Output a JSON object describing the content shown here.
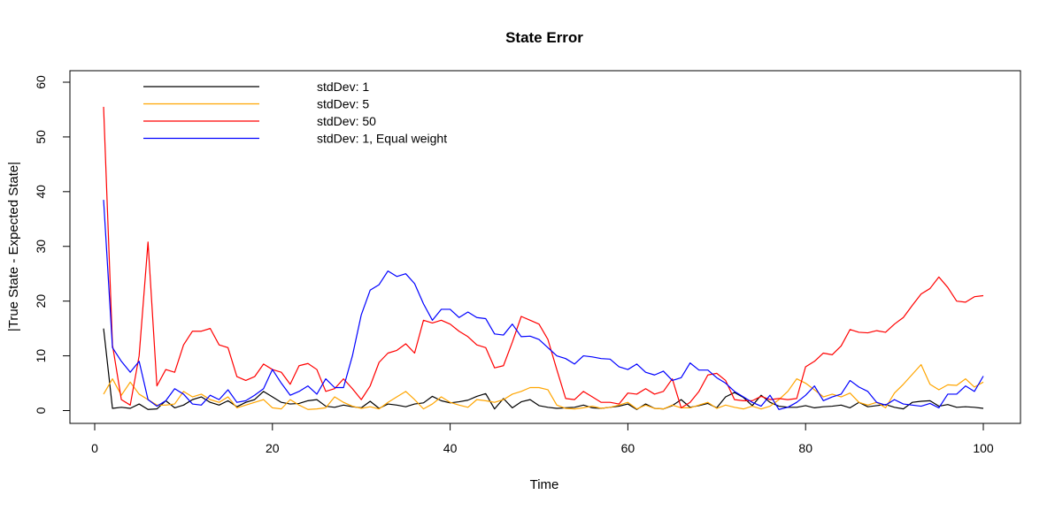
{
  "chart_data": {
    "type": "line",
    "title": "State Error",
    "xlabel": "Time",
    "ylabel": "|True State - Expected State|",
    "xlim": [
      1,
      100
    ],
    "ylim": [
      0,
      60
    ],
    "x_ticks": [
      0,
      20,
      40,
      60,
      80,
      100
    ],
    "y_ticks": [
      0,
      10,
      20,
      30,
      40,
      50,
      60
    ],
    "grid": false,
    "legend_position": "top-left",
    "series": [
      {
        "name": "stdDev: 1",
        "color": "#000000",
        "x": [
          1,
          2,
          3,
          4,
          5,
          6,
          7,
          8,
          9,
          10,
          11,
          12,
          13,
          14,
          15,
          16,
          17,
          18,
          19,
          20,
          21,
          22,
          23,
          24,
          25,
          26,
          27,
          28,
          29,
          30,
          31,
          32,
          33,
          34,
          35,
          36,
          37,
          38,
          39,
          40,
          41,
          42,
          43,
          44,
          45,
          46,
          47,
          48,
          49,
          50,
          51,
          52,
          53,
          54,
          55,
          56,
          57,
          58,
          59,
          60,
          61,
          62,
          63,
          64,
          65,
          66,
          67,
          68,
          69,
          70,
          71,
          72,
          73,
          74,
          75,
          76,
          77,
          78,
          79,
          80,
          81,
          82,
          83,
          84,
          85,
          86,
          87,
          88,
          89,
          90,
          91,
          92,
          93,
          94,
          95,
          96,
          97,
          98,
          99,
          100
        ],
        "values": [
          15,
          0.4,
          0.6,
          0.4,
          1.2,
          0.2,
          0.3,
          1.8,
          0.5,
          1.0,
          2.0,
          2.5,
          1.5,
          1.0,
          1.8,
          0.7,
          1.5,
          2.0,
          3.5,
          2.5,
          1.5,
          1.2,
          1.3,
          1.8,
          2.0,
          0.8,
          0.6,
          1.0,
          0.7,
          0.5,
          1.7,
          0.4,
          1.2,
          1.0,
          0.7,
          1.2,
          1.4,
          2.6,
          1.8,
          1.4,
          1.6,
          1.9,
          2.6,
          3.1,
          0.3,
          2.2,
          0.5,
          1.6,
          2.0,
          0.9,
          0.6,
          0.4,
          0.5,
          0.6,
          1.0,
          0.5,
          0.4,
          0.6,
          0.8,
          1.2,
          0.2,
          1.2,
          0.4,
          0.3,
          0.9,
          2.0,
          0.6,
          0.9,
          1.3,
          0.5,
          2.5,
          3.3,
          2.4,
          0.9,
          2.8,
          1.5,
          0.8,
          0.6,
          0.6,
          0.9,
          0.5,
          0.7,
          0.8,
          1.0,
          0.5,
          1.5,
          0.7,
          0.9,
          1.1,
          0.6,
          0.3,
          1.5,
          1.7,
          1.8,
          0.8,
          1.1,
          0.6,
          0.7,
          0.6,
          0.4
        ]
      },
      {
        "name": "stdDev: 5",
        "color": "#FFA500",
        "x": [
          1,
          2,
          3,
          4,
          5,
          6,
          7,
          8,
          9,
          10,
          11,
          12,
          13,
          14,
          15,
          16,
          17,
          18,
          19,
          20,
          21,
          22,
          23,
          24,
          25,
          26,
          27,
          28,
          29,
          30,
          31,
          32,
          33,
          34,
          35,
          36,
          37,
          38,
          39,
          40,
          41,
          42,
          43,
          44,
          45,
          46,
          47,
          48,
          49,
          50,
          51,
          52,
          53,
          54,
          55,
          56,
          57,
          58,
          59,
          60,
          61,
          62,
          63,
          64,
          65,
          66,
          67,
          68,
          69,
          70,
          71,
          72,
          73,
          74,
          75,
          76,
          77,
          78,
          79,
          80,
          81,
          82,
          83,
          84,
          85,
          86,
          87,
          88,
          89,
          90,
          91,
          92,
          93,
          94,
          95,
          96,
          97,
          98,
          99,
          100
        ],
        "values": [
          3,
          5.8,
          2.8,
          5.2,
          3.0,
          2.0,
          1.0,
          1.0,
          1.2,
          3.5,
          2.5,
          3.0,
          2.0,
          1.5,
          2.5,
          0.5,
          1.0,
          1.5,
          2.0,
          0.5,
          0.3,
          2.0,
          1.0,
          0.2,
          0.3,
          0.5,
          2.5,
          1.5,
          0.8,
          0.4,
          0.7,
          0.3,
          1.5,
          2.5,
          3.5,
          2.0,
          0.3,
          1.2,
          2.5,
          1.5,
          1.0,
          0.6,
          2.0,
          1.8,
          1.5,
          2.0,
          3.0,
          3.5,
          4.2,
          4.2,
          3.8,
          1.0,
          0.4,
          0.3,
          0.5,
          0.8,
          0.4,
          0.6,
          1.0,
          1.5,
          0.3,
          1.0,
          0.4,
          0.3,
          1.0,
          0.5,
          0.5,
          1.0,
          1.5,
          0.4,
          1.0,
          0.6,
          0.3,
          0.8,
          0.3,
          0.8,
          2.0,
          3.5,
          5.8,
          5.0,
          3.8,
          2.5,
          3.0,
          2.5,
          3.2,
          1.5,
          1.0,
          1.5,
          0.5,
          3.2,
          4.8,
          6.6,
          8.4,
          4.8,
          3.8,
          4.7,
          4.6,
          5.8,
          4.3,
          5.2
        ]
      },
      {
        "name": "stdDev: 50",
        "color": "#FF0000",
        "x": [
          1,
          2,
          3,
          4,
          5,
          6,
          7,
          8,
          9,
          10,
          11,
          12,
          13,
          14,
          15,
          16,
          17,
          18,
          19,
          20,
          21,
          22,
          23,
          24,
          25,
          26,
          27,
          28,
          29,
          30,
          31,
          32,
          33,
          34,
          35,
          36,
          37,
          38,
          39,
          40,
          41,
          42,
          43,
          44,
          45,
          46,
          47,
          48,
          49,
          50,
          51,
          52,
          53,
          54,
          55,
          56,
          57,
          58,
          59,
          60,
          61,
          62,
          63,
          64,
          65,
          66,
          67,
          68,
          69,
          70,
          71,
          72,
          73,
          74,
          75,
          76,
          77,
          78,
          79,
          80,
          81,
          82,
          83,
          84,
          85,
          86,
          87,
          88,
          89,
          90,
          91,
          92,
          93,
          94,
          95,
          96,
          97,
          98,
          99,
          100
        ],
        "values": [
          55.5,
          12,
          2,
          1,
          10,
          30.8,
          4.5,
          7.5,
          7,
          12,
          14.5,
          14.5,
          15,
          12,
          11.5,
          6.2,
          5.5,
          6.2,
          8.5,
          7.5,
          7,
          4.8,
          8.2,
          8.6,
          7.5,
          3.5,
          4,
          5.8,
          4,
          2,
          4.5,
          8.8,
          10.5,
          11,
          12.2,
          10.5,
          16.5,
          16,
          16.5,
          15.8,
          14.5,
          13.5,
          12,
          11.5,
          7.8,
          8.2,
          12.5,
          17.2,
          16.5,
          15.8,
          13,
          7.5,
          2.2,
          2,
          3.5,
          2.5,
          1.5,
          1.5,
          1.2,
          3.2,
          3,
          4,
          3,
          3.5,
          5.8,
          0.5,
          1.5,
          3.5,
          6.5,
          6.8,
          5.5,
          2,
          1.8,
          1.8,
          2.6,
          2,
          2.2,
          2,
          2.2,
          8,
          9,
          10.5,
          10.2,
          11.8,
          14.8,
          14.3,
          14.2,
          14.6,
          14.3,
          15.8,
          17,
          19.2,
          21.3,
          22.3,
          24.4,
          22.5,
          20,
          19.8,
          20.8,
          21
        ]
      },
      {
        "name": "stdDev: 1, Equal weight",
        "color": "#0000FF",
        "x": [
          1,
          2,
          3,
          4,
          5,
          6,
          7,
          8,
          9,
          10,
          11,
          12,
          13,
          14,
          15,
          16,
          17,
          18,
          19,
          20,
          21,
          22,
          23,
          24,
          25,
          26,
          27,
          28,
          29,
          30,
          31,
          32,
          33,
          34,
          35,
          36,
          37,
          38,
          39,
          40,
          41,
          42,
          43,
          44,
          45,
          46,
          47,
          48,
          49,
          50,
          51,
          52,
          53,
          54,
          55,
          56,
          57,
          58,
          59,
          60,
          61,
          62,
          63,
          64,
          65,
          66,
          67,
          68,
          69,
          70,
          71,
          72,
          73,
          74,
          75,
          76,
          77,
          78,
          79,
          80,
          81,
          82,
          83,
          84,
          85,
          86,
          87,
          88,
          89,
          90,
          91,
          92,
          93,
          94,
          95,
          96,
          97,
          98,
          99,
          100
        ],
        "values": [
          38.5,
          11.5,
          9,
          7,
          9,
          2,
          0.8,
          1.8,
          4,
          3,
          1.2,
          1,
          2.8,
          2,
          3.8,
          1.5,
          1.8,
          2.8,
          4,
          7.5,
          5,
          2.8,
          3.5,
          4.5,
          3,
          5.8,
          4.2,
          4.2,
          10,
          17.5,
          22,
          23,
          25.5,
          24.5,
          25,
          23.2,
          19.5,
          16.5,
          18.5,
          18.5,
          17,
          18,
          17,
          16.8,
          14,
          13.8,
          15.8,
          13.5,
          13.6,
          13,
          11.5,
          10,
          9.5,
          8.5,
          10,
          9.8,
          9.5,
          9.4,
          8,
          7.5,
          8.5,
          7,
          6.5,
          7.2,
          5.5,
          6,
          8.7,
          7.4,
          7.4,
          6,
          5,
          3.5,
          2.5,
          1.5,
          0.8,
          2.8,
          0.2,
          0.6,
          1.5,
          2.8,
          4.5,
          1.8,
          2.5,
          3,
          5.5,
          4.3,
          3.5,
          1.5,
          1,
          2,
          1.2,
          1,
          0.8,
          1.3,
          0.5,
          3,
          3,
          4.5,
          3.5,
          6.3
        ]
      }
    ]
  }
}
